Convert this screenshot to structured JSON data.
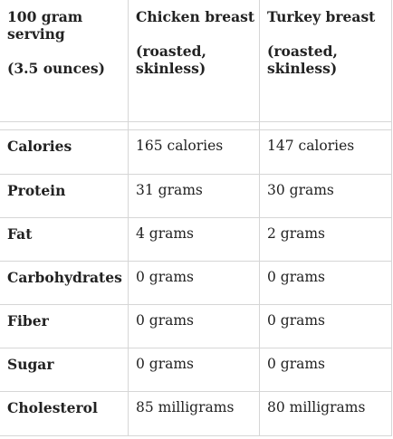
{
  "table": {
    "header": {
      "col1": [
        "100 gram",
        "serving",
        "",
        "(3.5 ounces)"
      ],
      "col2": [
        "Chicken breast",
        "",
        "(roasted,",
        "skinless)"
      ],
      "col3": [
        "Turkey breast",
        "",
        "(roasted,",
        "skinless)"
      ]
    },
    "rows": [
      {
        "nutrient": "Calories",
        "chicken": "165 calories",
        "turkey": "147 calories"
      },
      {
        "nutrient": "Protein",
        "chicken": "31 grams",
        "turkey": "30 grams"
      },
      {
        "nutrient": "Fat",
        "chicken": "4 grams",
        "turkey": "2 grams"
      },
      {
        "nutrient": "Carbohydrates",
        "chicken": "0 grams",
        "turkey": "0 grams"
      },
      {
        "nutrient": "Fiber",
        "chicken": "0 grams",
        "turkey": "0 grams"
      },
      {
        "nutrient": "Sugar",
        "chicken": "0 grams",
        "turkey": "0 grams"
      },
      {
        "nutrient": "Cholesterol",
        "chicken": "85 milligrams",
        "turkey": "80 milligrams"
      }
    ]
  }
}
